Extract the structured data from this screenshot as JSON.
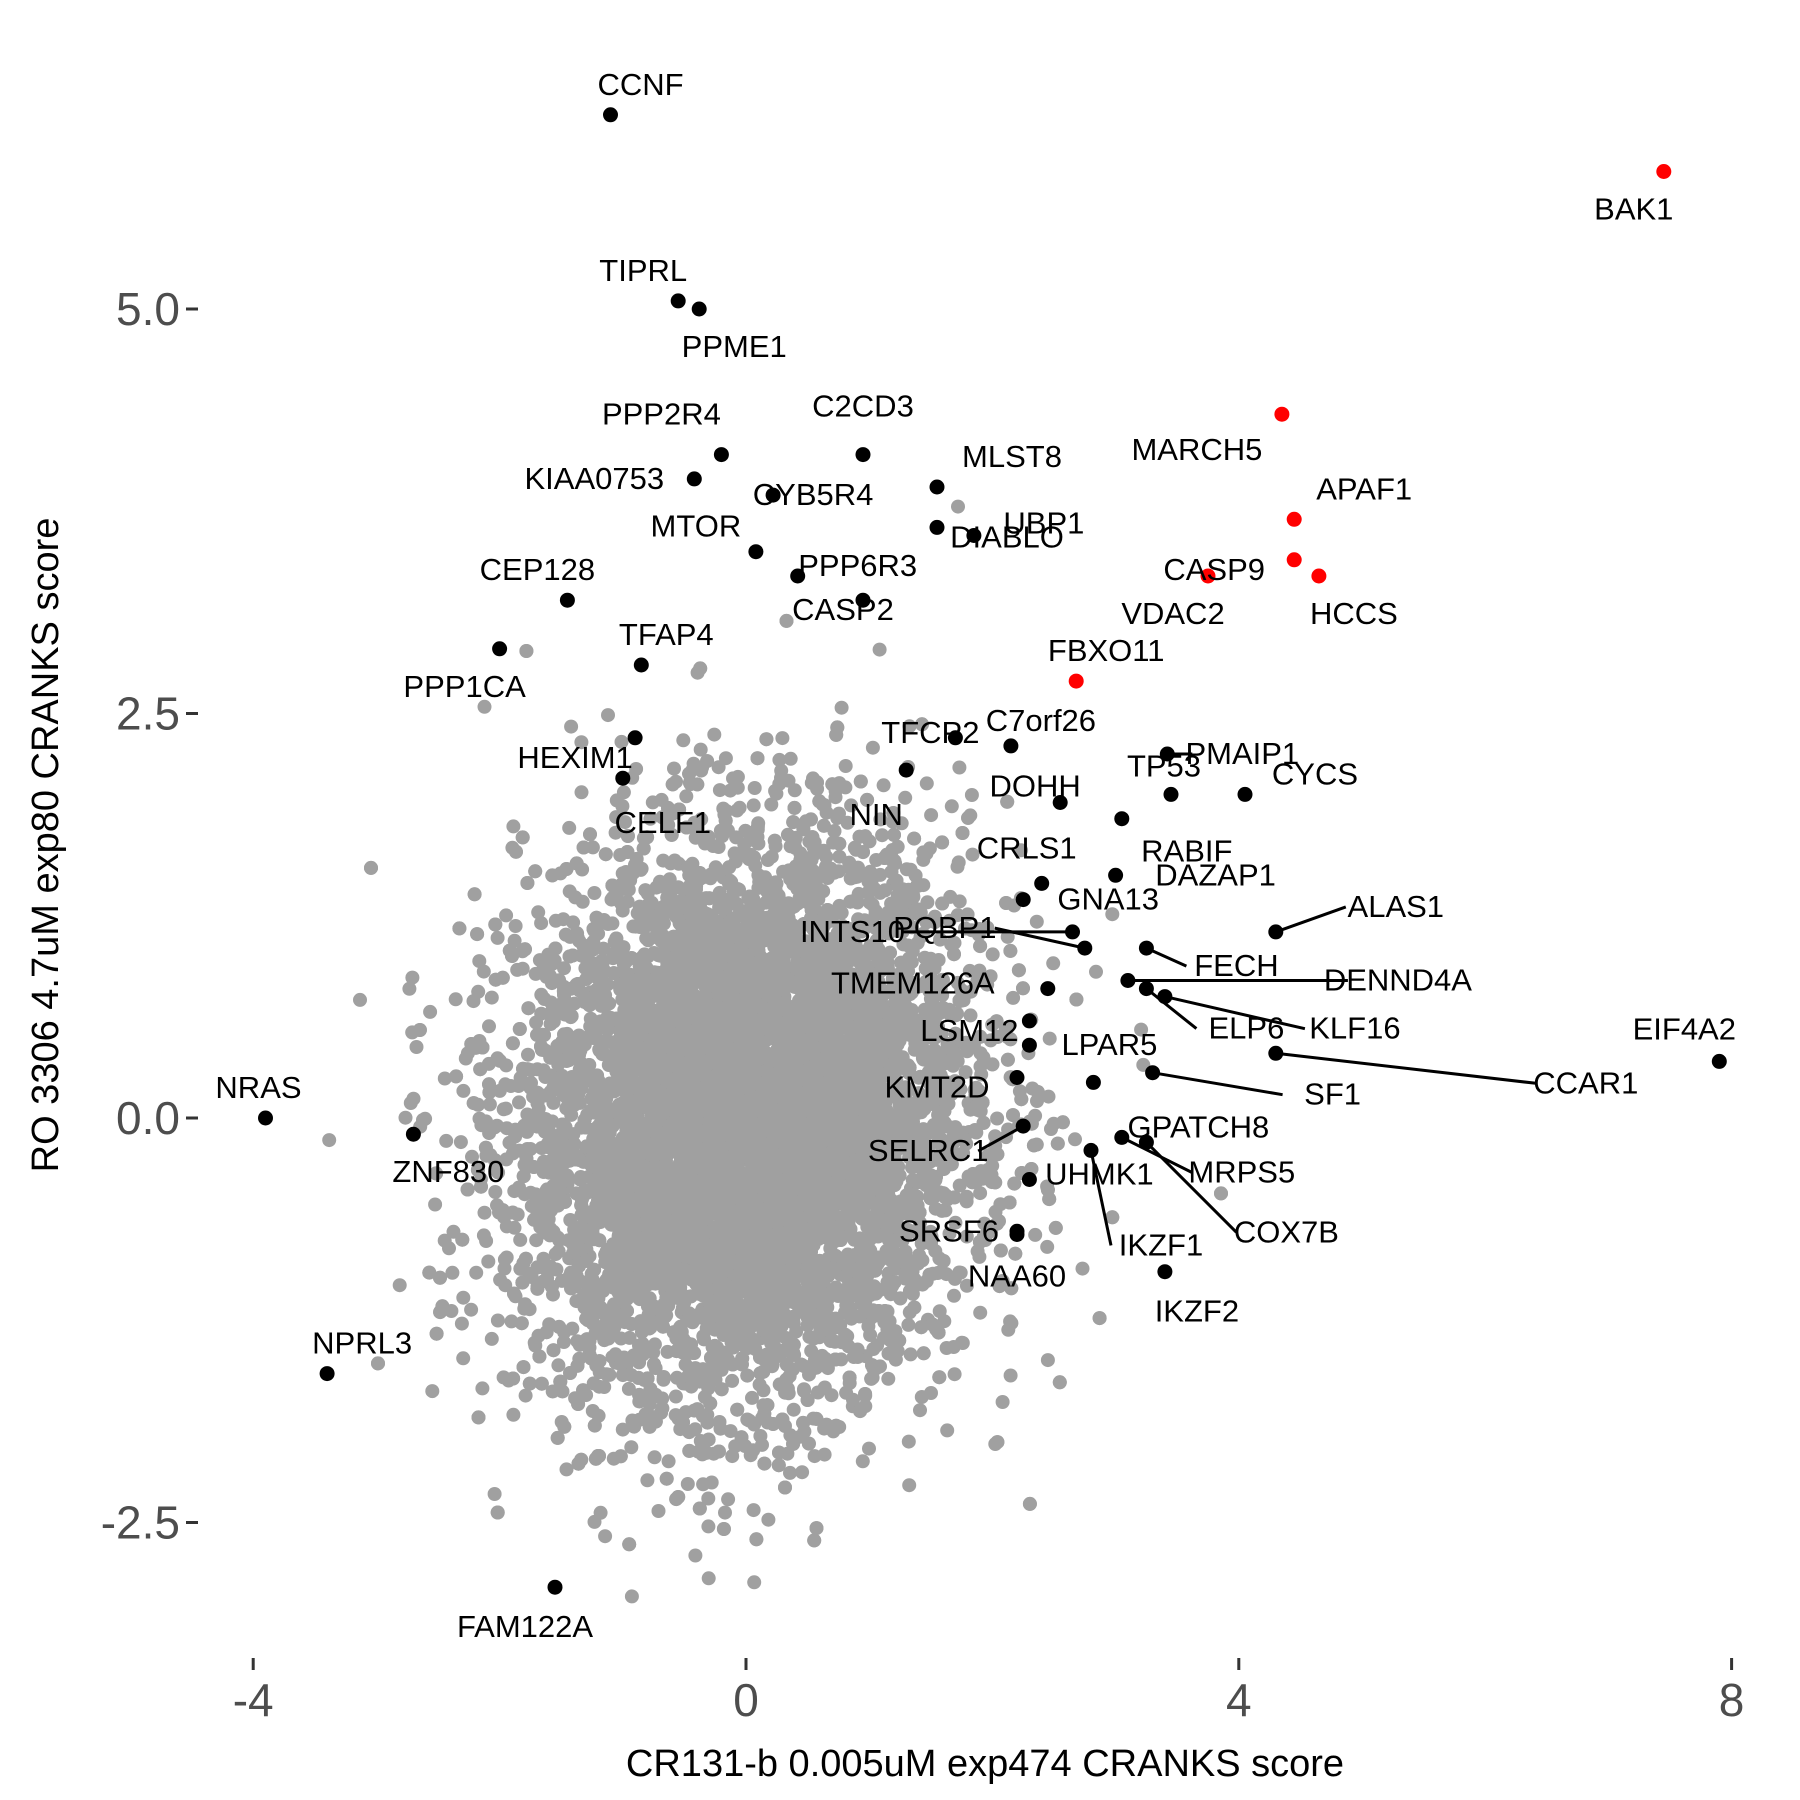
{
  "chart_data": {
    "type": "scatter",
    "xlabel": "CR131-b 0.005uM exp474 CRANKS score",
    "ylabel": "RO 3306 4.7uM exp80 CRANKS score",
    "xlim": [
      -4.4,
      8.2
    ],
    "ylim": [
      -3.2,
      6.3
    ],
    "xticks": [
      -4,
      0,
      4,
      8
    ],
    "yticks": [
      -2.5,
      0.0,
      2.5,
      5.0
    ],
    "xtick_labels": [
      "-4",
      "0",
      "4",
      "8"
    ],
    "ytick_labels": [
      "-2.5",
      "0.0",
      "2.5",
      "5.0"
    ],
    "grid": false,
    "background_cloud": {
      "color": "#a0a0a0",
      "count": 9000,
      "x_mean": 0.0,
      "y_mean": 0.0,
      "x_sd": 0.9,
      "y_sd": 0.85
    },
    "colors": {
      "highlight": "#ff0000",
      "labeled": "#000000",
      "background": "#a0a0a0"
    },
    "labeled_points": [
      {
        "label": "CCNF",
        "x": -1.1,
        "y": 6.2,
        "color": "#000000"
      },
      {
        "label": "BAK1",
        "x": 7.45,
        "y": 5.85,
        "color": "#ff0000"
      },
      {
        "label": "TIPRL",
        "x": -0.55,
        "y": 5.05,
        "color": "#000000"
      },
      {
        "label": "PPME1",
        "x": -0.38,
        "y": 5.0,
        "color": "#000000"
      },
      {
        "label": "MARCH5",
        "x": 4.35,
        "y": 4.35,
        "color": "#ff0000"
      },
      {
        "label": "C2CD3",
        "x": 0.95,
        "y": 4.1,
        "color": "#000000"
      },
      {
        "label": "PPP2R4",
        "x": -0.2,
        "y": 4.1,
        "color": "#000000"
      },
      {
        "label": "KIAA0753",
        "x": -0.42,
        "y": 3.95,
        "color": "#000000"
      },
      {
        "label": "CYB5R4",
        "x": 0.22,
        "y": 3.85,
        "color": "#000000"
      },
      {
        "label": "MLST8",
        "x": 1.55,
        "y": 3.9,
        "color": "#000000"
      },
      {
        "label": "APAF1",
        "x": 4.45,
        "y": 3.7,
        "color": "#ff0000"
      },
      {
        "label": "UBP1",
        "x": 1.85,
        "y": 3.6,
        "color": "#000000"
      },
      {
        "label": "CASP9",
        "x": 4.45,
        "y": 3.45,
        "color": "#ff0000"
      },
      {
        "label": "HCCS",
        "x": 4.65,
        "y": 3.35,
        "color": "#ff0000"
      },
      {
        "label": "VDAC2",
        "x": 3.75,
        "y": 3.35,
        "color": "#ff0000"
      },
      {
        "label": "MTOR",
        "x": 0.08,
        "y": 3.5,
        "color": "#000000"
      },
      {
        "label": "PPP6R3",
        "x": 0.42,
        "y": 3.35,
        "color": "#000000"
      },
      {
        "label": "CEP128",
        "x": -1.45,
        "y": 3.2,
        "color": "#000000"
      },
      {
        "label": "CASP2",
        "x": 0.95,
        "y": 3.2,
        "color": "#000000"
      },
      {
        "label": "DIABLO",
        "x": 1.55,
        "y": 3.65,
        "color": "#000000"
      },
      {
        "label": "TFAP4",
        "x": -0.85,
        "y": 2.8,
        "color": "#000000"
      },
      {
        "label": "PPP1CA",
        "x": -2.0,
        "y": 2.9,
        "color": "#000000"
      },
      {
        "label": "FBXO11",
        "x": 2.68,
        "y": 2.7,
        "color": "#ff0000"
      },
      {
        "label": "PMAIP1",
        "x": 3.42,
        "y": 2.25,
        "color": "#000000"
      },
      {
        "label": "C7orf26",
        "x": 2.15,
        "y": 2.3,
        "color": "#000000"
      },
      {
        "label": "TFCP2",
        "x": 1.7,
        "y": 2.35,
        "color": "#000000"
      },
      {
        "label": "HEXIM1",
        "x": -0.9,
        "y": 2.35,
        "color": "#000000"
      },
      {
        "label": "TP53",
        "x": 3.45,
        "y": 2.0,
        "color": "#000000"
      },
      {
        "label": "CYCS",
        "x": 4.05,
        "y": 2.0,
        "color": "#000000"
      },
      {
        "label": "DOHH",
        "x": 2.55,
        "y": 1.95,
        "color": "#000000"
      },
      {
        "label": "NIN",
        "x": 1.3,
        "y": 2.15,
        "color": "#000000"
      },
      {
        "label": "CELF1",
        "x": -1.0,
        "y": 2.1,
        "color": "#000000"
      },
      {
        "label": "RABIF",
        "x": 3.05,
        "y": 1.85,
        "color": "#000000"
      },
      {
        "label": "CRLS1",
        "x": 2.4,
        "y": 1.45,
        "color": "#000000"
      },
      {
        "label": "GNA13",
        "x": 2.25,
        "y": 1.35,
        "color": "#000000"
      },
      {
        "label": "DAZAP1",
        "x": 3.0,
        "y": 1.5,
        "color": "#000000"
      },
      {
        "label": "ALAS1",
        "x": 4.3,
        "y": 1.15,
        "color": "#000000"
      },
      {
        "label": "INTS10",
        "x": 2.65,
        "y": 1.15,
        "color": "#000000"
      },
      {
        "label": "PQBP1",
        "x": 2.75,
        "y": 1.05,
        "color": "#000000"
      },
      {
        "label": "FECH",
        "x": 3.25,
        "y": 1.05,
        "color": "#000000"
      },
      {
        "label": "DENND4A",
        "x": 3.1,
        "y": 0.85,
        "color": "#000000"
      },
      {
        "label": "TMEM126A",
        "x": 2.45,
        "y": 0.8,
        "color": "#000000"
      },
      {
        "label": "KLF16",
        "x": 3.4,
        "y": 0.75,
        "color": "#000000"
      },
      {
        "label": "ELP6",
        "x": 3.25,
        "y": 0.8,
        "color": "#000000"
      },
      {
        "label": "LSM12",
        "x": 2.3,
        "y": 0.6,
        "color": "#000000"
      },
      {
        "label": "LPAR5",
        "x": 2.3,
        "y": 0.45,
        "color": "#000000"
      },
      {
        "label": "CCAR1",
        "x": 4.3,
        "y": 0.4,
        "color": "#000000"
      },
      {
        "label": "SF1",
        "x": 3.3,
        "y": 0.28,
        "color": "#000000"
      },
      {
        "label": "EIF4A2",
        "x": 7.9,
        "y": 0.35,
        "color": "#000000"
      },
      {
        "label": "KMT2D",
        "x": 2.2,
        "y": 0.25,
        "color": "#000000"
      },
      {
        "label": "GPATCH8",
        "x": 2.82,
        "y": 0.22,
        "color": "#000000"
      },
      {
        "label": "SELRC1",
        "x": 2.25,
        "y": -0.05,
        "color": "#000000"
      },
      {
        "label": "MRPS5",
        "x": 3.05,
        "y": -0.12,
        "color": "#000000"
      },
      {
        "label": "COX7B",
        "x": 3.25,
        "y": -0.15,
        "color": "#000000"
      },
      {
        "label": "UHMK1",
        "x": 2.3,
        "y": -0.38,
        "color": "#000000"
      },
      {
        "label": "IKZF1",
        "x": 2.8,
        "y": -0.2,
        "color": "#000000"
      },
      {
        "label": "SRSF6",
        "x": 2.2,
        "y": -0.7,
        "color": "#000000"
      },
      {
        "label": "NAA60",
        "x": 2.2,
        "y": -0.72,
        "color": "#000000"
      },
      {
        "label": "IKZF2",
        "x": 3.4,
        "y": -0.95,
        "color": "#000000"
      },
      {
        "label": "NRAS",
        "x": -3.9,
        "y": 0.0,
        "color": "#000000"
      },
      {
        "label": "ZNF830",
        "x": -2.7,
        "y": -0.1,
        "color": "#000000"
      },
      {
        "label": "NPRL3",
        "x": -3.4,
        "y": -1.58,
        "color": "#000000"
      },
      {
        "label": "FAM122A",
        "x": -1.55,
        "y": -2.9,
        "color": "#000000"
      }
    ]
  }
}
